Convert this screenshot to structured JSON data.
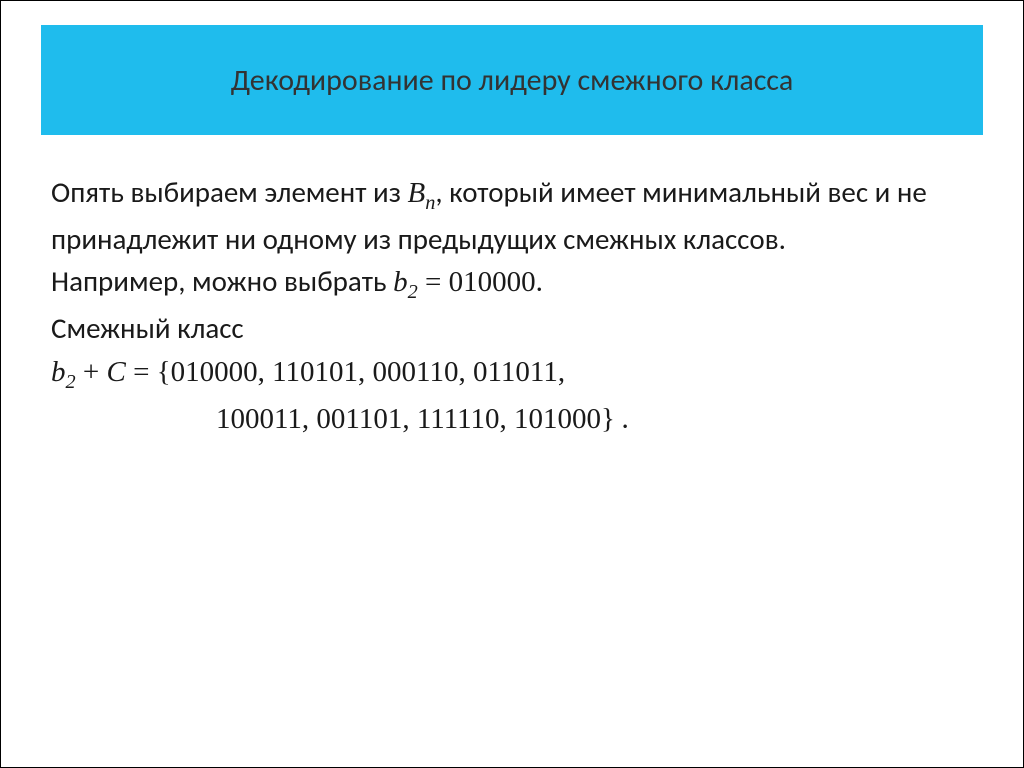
{
  "slide": {
    "title": "Декодирование по лидеру смежного класса",
    "header": {
      "background_color": "#1fbced",
      "text_color": "#333333",
      "font_size": 30
    },
    "body": {
      "text_color": "#1a1a1a",
      "font_size": 29,
      "background_color": "#ffffff"
    },
    "paragraph1": {
      "part1": "Опять выбираем элемент из ",
      "var1": "B",
      "sub1": "n",
      "part2": ", который имеет минимальный вес и не принадлежит ни одному из предыдущих смежных классов."
    },
    "paragraph2": {
      "part1": "Например, можно выбрать ",
      "var1": "b",
      "sub1": "2",
      "eq": " =   ",
      "value": "010000",
      "period": "."
    },
    "paragraph3": {
      "text": "Смежный класс"
    },
    "coset": {
      "var1": "b",
      "sub1": "2",
      "plus": " + ",
      "var2": "C",
      "eq": "  =  ",
      "open": "{",
      "values_line1": "010000, 110101, 000110, 011011,",
      "values_line2": "100011, 001101, 111110, 101000",
      "close": "}",
      "period": " ."
    }
  }
}
